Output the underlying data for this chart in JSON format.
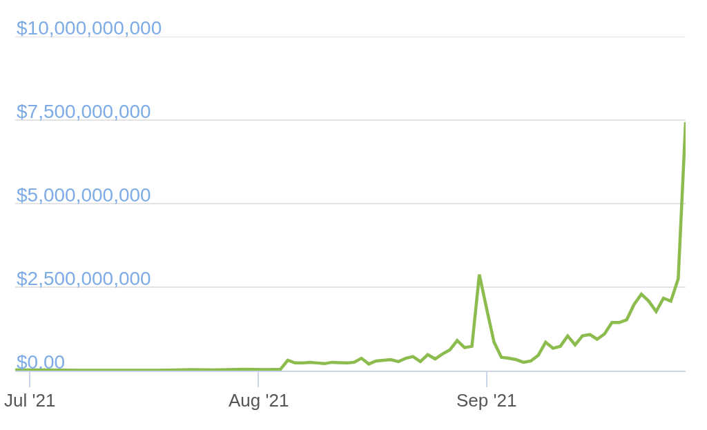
{
  "chart_data": {
    "type": "line",
    "grid": "y",
    "marker": "none",
    "line_style": "solid",
    "x": [
      "2021-06-29",
      "2021-07-03",
      "2021-07-08",
      "2021-07-13",
      "2021-07-18",
      "2021-07-23",
      "2021-07-26",
      "2021-07-30",
      "2021-08-02",
      "2021-08-04",
      "2021-08-05",
      "2021-08-06",
      "2021-08-07",
      "2021-08-08",
      "2021-08-09",
      "2021-08-10",
      "2021-08-11",
      "2021-08-12",
      "2021-08-13",
      "2021-08-14",
      "2021-08-15",
      "2021-08-16",
      "2021-08-17",
      "2021-08-18",
      "2021-08-19",
      "2021-08-20",
      "2021-08-21",
      "2021-08-22",
      "2021-08-23",
      "2021-08-24",
      "2021-08-25",
      "2021-08-26",
      "2021-08-27",
      "2021-08-28",
      "2021-08-29",
      "2021-08-30",
      "2021-08-31",
      "2021-09-01",
      "2021-09-02",
      "2021-09-03",
      "2021-09-04",
      "2021-09-05",
      "2021-09-06",
      "2021-09-07",
      "2021-09-08",
      "2021-09-09",
      "2021-09-10",
      "2021-09-11",
      "2021-09-12",
      "2021-09-13",
      "2021-09-14",
      "2021-09-15",
      "2021-09-16",
      "2021-09-17",
      "2021-09-18",
      "2021-09-19",
      "2021-09-20",
      "2021-09-21",
      "2021-09-22",
      "2021-09-23",
      "2021-09-24",
      "2021-09-25",
      "2021-09-26",
      "2021-09-27",
      "2021-09-28"
    ],
    "series": [
      {
        "color": "#8cbb4e",
        "values": [
          20000000,
          20000000,
          10000000,
          10000000,
          10000000,
          30000000,
          20000000,
          40000000,
          30000000,
          40000000,
          310000000,
          230000000,
          230000000,
          250000000,
          230000000,
          210000000,
          250000000,
          240000000,
          230000000,
          250000000,
          370000000,
          200000000,
          290000000,
          310000000,
          330000000,
          270000000,
          370000000,
          420000000,
          270000000,
          480000000,
          350000000,
          500000000,
          620000000,
          900000000,
          690000000,
          730000000,
          2880000000,
          1850000000,
          850000000,
          400000000,
          370000000,
          330000000,
          250000000,
          290000000,
          460000000,
          850000000,
          670000000,
          730000000,
          1040000000,
          770000000,
          1040000000,
          1080000000,
          940000000,
          1100000000,
          1440000000,
          1440000000,
          1520000000,
          1980000000,
          2290000000,
          2080000000,
          1770000000,
          2170000000,
          2080000000,
          2750000000,
          7440000000
        ]
      }
    ],
    "xlim": [
      "2021-06-29",
      "2021-09-28"
    ],
    "xticks": [
      {
        "value": "2021-07-01",
        "label": "Jul '21"
      },
      {
        "value": "2021-08-01",
        "label": "Aug '21"
      },
      {
        "value": "2021-09-01",
        "label": "Sep '21"
      }
    ],
    "ylim": [
      0,
      10000000000
    ],
    "yticks": [
      {
        "value": 0,
        "label": "$0.00"
      },
      {
        "value": 2500000000,
        "label": "$2,500,000,000"
      },
      {
        "value": 5000000000,
        "label": "$5,000,000,000"
      },
      {
        "value": 7500000000,
        "label": "$7,500,000,000"
      },
      {
        "value": 10000000000,
        "label": "$10,000,000,000"
      }
    ]
  }
}
